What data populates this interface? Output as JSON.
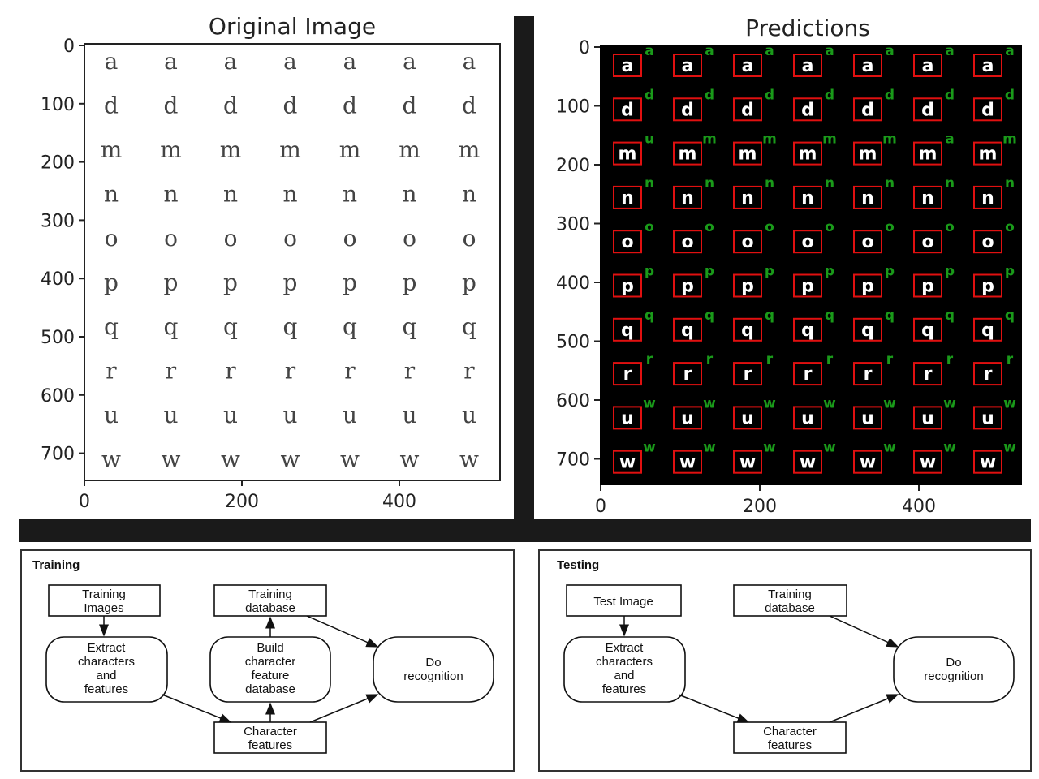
{
  "top_left_panel": {
    "title": "Original Image",
    "y_ticks": [
      "0",
      "100",
      "200",
      "300",
      "400",
      "500",
      "600",
      "700"
    ],
    "x_ticks": [
      "0",
      "200",
      "400"
    ],
    "rows": [
      [
        "a",
        "a",
        "a",
        "a",
        "a",
        "a",
        "a"
      ],
      [
        "d",
        "d",
        "d",
        "d",
        "d",
        "d",
        "d"
      ],
      [
        "m",
        "m",
        "m",
        "m",
        "m",
        "m",
        "m"
      ],
      [
        "n",
        "n",
        "n",
        "n",
        "n",
        "n",
        "n"
      ],
      [
        "o",
        "o",
        "o",
        "o",
        "o",
        "o",
        "o"
      ],
      [
        "p",
        "p",
        "p",
        "p",
        "p",
        "p",
        "p"
      ],
      [
        "q",
        "q",
        "q",
        "q",
        "q",
        "q",
        "q"
      ],
      [
        "r",
        "r",
        "r",
        "r",
        "r",
        "r",
        "r"
      ],
      [
        "u",
        "u",
        "u",
        "u",
        "u",
        "u",
        "u"
      ],
      [
        "w",
        "w",
        "w",
        "w",
        "w",
        "w",
        "w"
      ]
    ]
  },
  "top_right_panel": {
    "title": "Predictions",
    "y_ticks": [
      "0",
      "100",
      "200",
      "300",
      "400",
      "500",
      "600",
      "700"
    ],
    "x_ticks": [
      "0",
      "200",
      "400"
    ],
    "predicted_labels": [
      [
        "a",
        "a",
        "a",
        "a",
        "a",
        "a",
        "a"
      ],
      [
        "d",
        "d",
        "d",
        "d",
        "d",
        "d",
        "d"
      ],
      [
        "u",
        "m",
        "m",
        "m",
        "m",
        "a",
        "m"
      ],
      [
        "n",
        "n",
        "n",
        "n",
        "n",
        "n",
        "n"
      ],
      [
        "o",
        "o",
        "o",
        "o",
        "o",
        "o",
        "o"
      ],
      [
        "p",
        "p",
        "p",
        "p",
        "p",
        "p",
        "p"
      ],
      [
        "q",
        "q",
        "q",
        "q",
        "q",
        "q",
        "q"
      ],
      [
        "r",
        "r",
        "r",
        "r",
        "r",
        "r",
        "r"
      ],
      [
        "w",
        "w",
        "w",
        "w",
        "w",
        "w",
        "w"
      ],
      [
        "w",
        "w",
        "w",
        "w",
        "w",
        "w",
        "w"
      ]
    ],
    "colors": {
      "background": "#000000",
      "box": "#e01010",
      "label": "#1a9a1a"
    }
  },
  "training": {
    "title": "Training",
    "nodes": {
      "training_images": [
        "Training",
        "Images"
      ],
      "extract": [
        "Extract",
        "characters",
        "and",
        "features"
      ],
      "training_database": [
        "Training",
        "database"
      ],
      "build": [
        "Build",
        "character",
        "feature",
        "database"
      ],
      "do_recognition": [
        "Do",
        "recognition"
      ],
      "character_features": [
        "Character",
        "features"
      ]
    }
  },
  "testing": {
    "title": "Testing",
    "nodes": {
      "test_image": [
        "Test Image"
      ],
      "extract": [
        "Extract",
        "characters",
        "and",
        "features"
      ],
      "training_database": [
        "Training",
        "database"
      ],
      "do_recognition": [
        "Do",
        "recognition"
      ],
      "character_features": [
        "Character",
        "features"
      ]
    }
  }
}
